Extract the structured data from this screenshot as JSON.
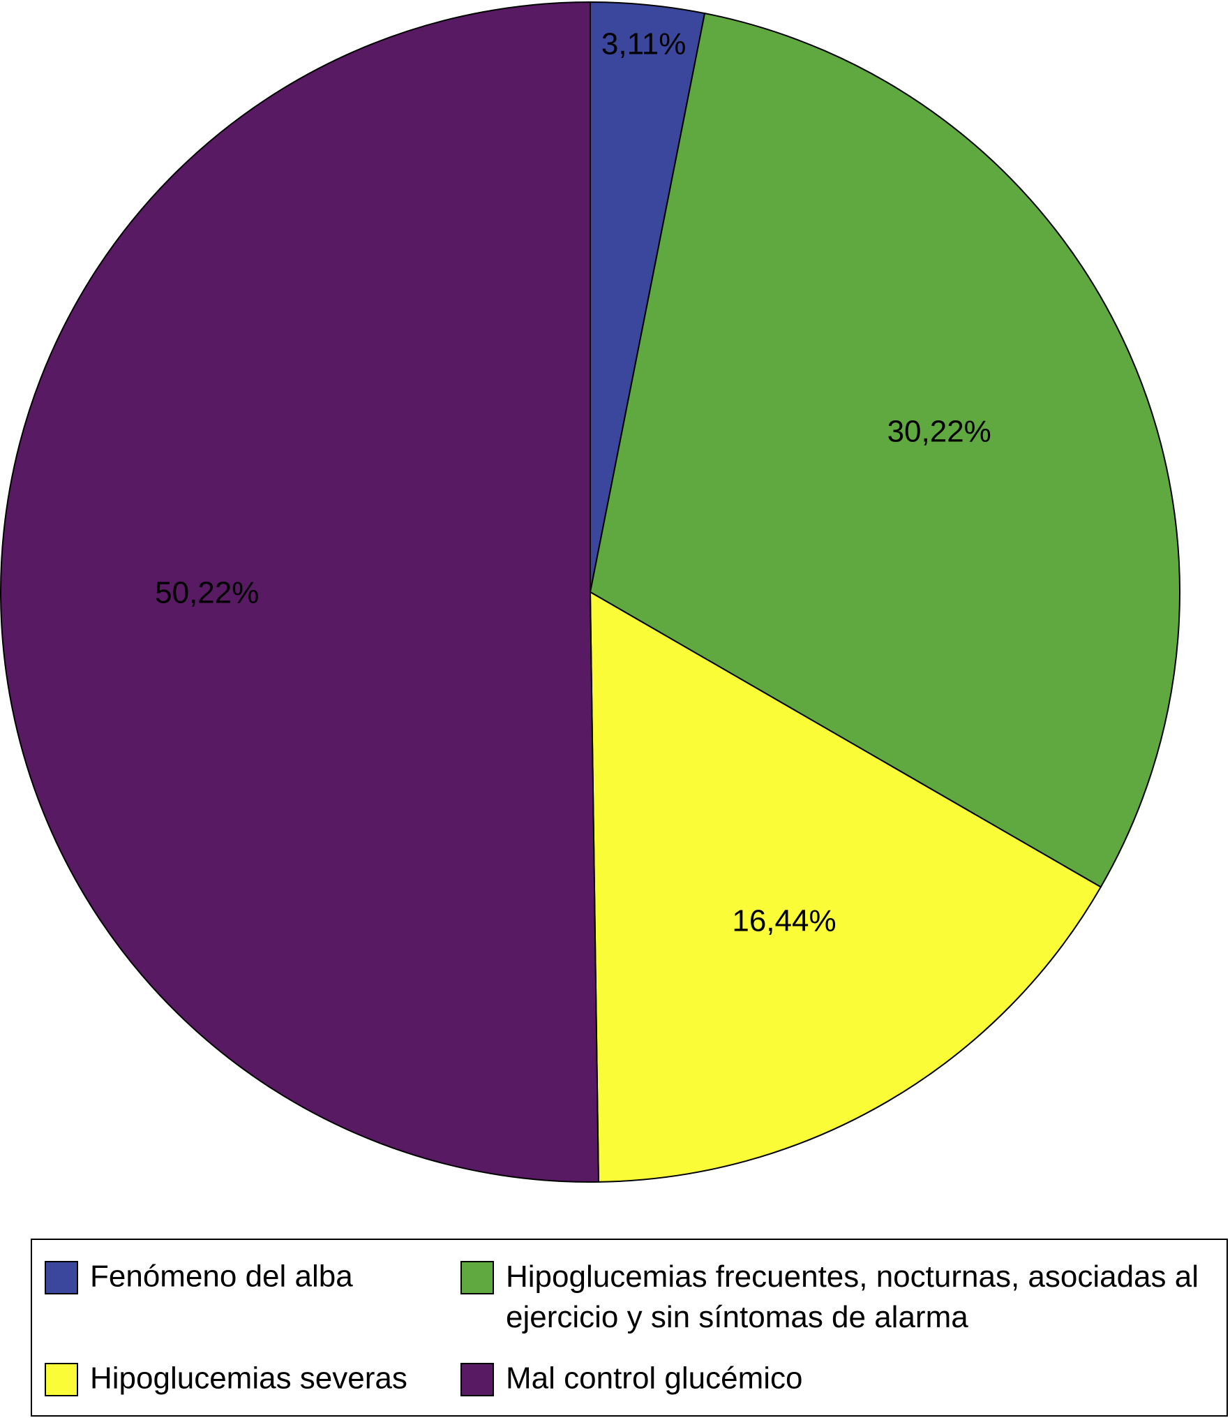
{
  "chart_data": {
    "type": "pie",
    "categories": [
      "Fenómeno del alba",
      "Hipoglucemias frecuentes, nocturnas, asociadas al ejercicio y sin síntomas de alarma",
      "Hipoglucemias severas",
      "Mal control glucémico"
    ],
    "values": [
      3.11,
      30.22,
      16.44,
      50.22
    ],
    "value_labels": [
      "3,11%",
      "30,22%",
      "16,44%",
      "50,22%"
    ],
    "colors": [
      "#3a479c",
      "#5fa940",
      "#fafc38",
      "#581a63"
    ]
  }
}
